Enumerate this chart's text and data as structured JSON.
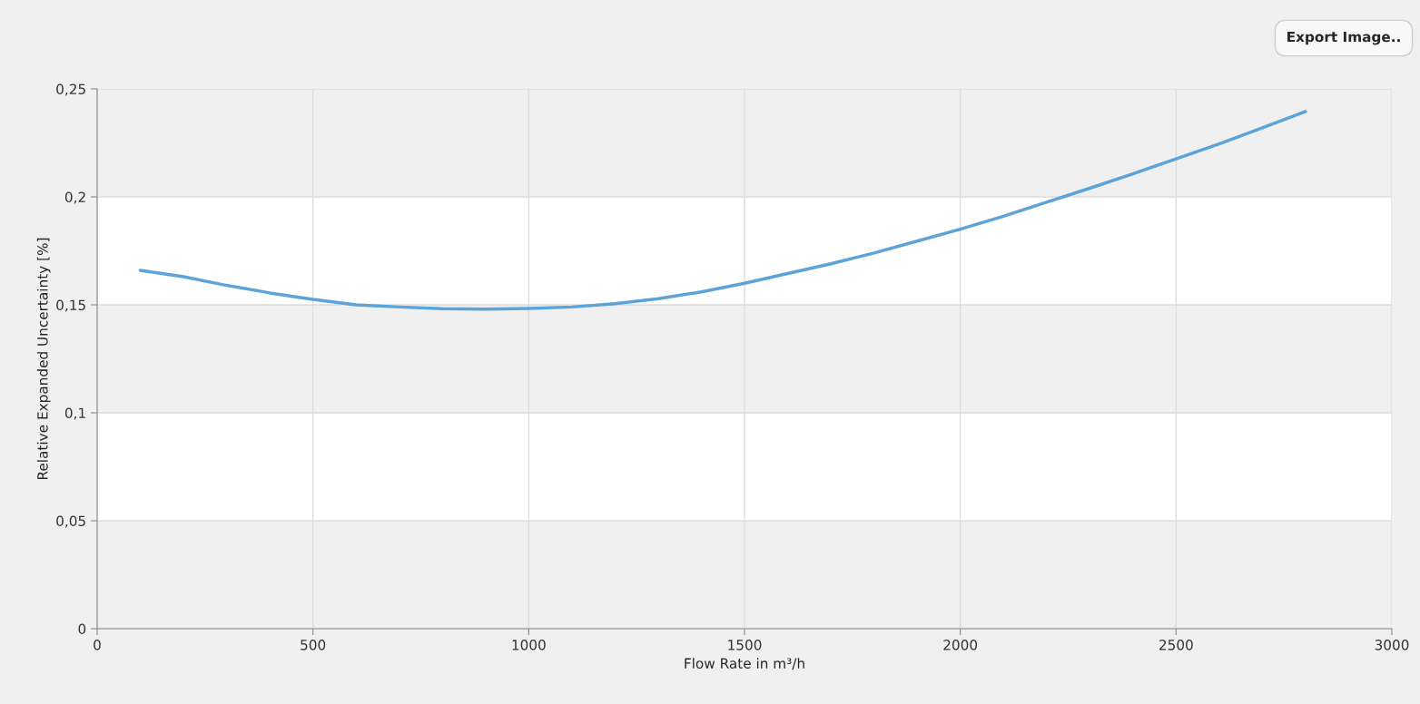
{
  "chart_data": {
    "type": "line",
    "xlabel": "Flow Rate in m³/h",
    "ylabel": "Relative Expanded Uncertainty [%]",
    "annotations": [
      "Export Image.."
    ],
    "x": [
      100,
      200,
      300,
      400,
      500,
      600,
      700,
      800,
      900,
      1000,
      1100,
      1200,
      1300,
      1400,
      1500,
      1600,
      1700,
      1800,
      1900,
      2000,
      2100,
      2200,
      2300,
      2400,
      2500,
      2600,
      2700,
      2800
    ],
    "series": [
      {
        "color": "#5ba3d9",
        "values": [
          0.166,
          0.163,
          0.159,
          0.1555,
          0.1525,
          0.15,
          0.149,
          0.1482,
          0.148,
          0.1483,
          0.149,
          0.1505,
          0.1528,
          0.156,
          0.16,
          0.1645,
          0.169,
          0.174,
          0.1795,
          0.185,
          0.191,
          0.1975,
          0.204,
          0.2107,
          0.2176,
          0.2245,
          0.232,
          0.2395
        ]
      }
    ],
    "xlim": [
      0,
      3000
    ],
    "xticks": [
      0,
      500,
      1000,
      1500,
      2000,
      2500,
      3000
    ],
    "ylim": [
      0,
      0.25
    ],
    "yticks": [
      {
        "value": 0,
        "label": "0"
      },
      {
        "value": 0.05,
        "label": "0,05"
      },
      {
        "value": 0.1,
        "label": "0,1"
      },
      {
        "value": 0.15,
        "label": "0,15"
      },
      {
        "value": 0.2,
        "label": "0,2"
      },
      {
        "value": 0.25,
        "label": "0,25"
      }
    ],
    "bands": [
      {
        "axis": "y",
        "from": 0,
        "to": 0.05,
        "color": "#f0f0f0"
      },
      {
        "axis": "y",
        "from": 0.1,
        "to": 0.15,
        "color": "#f0f0f0"
      },
      {
        "axis": "y",
        "from": 0.2,
        "to": 0.25,
        "color": "#f0f0f0"
      }
    ],
    "grid": true,
    "legend": false,
    "marker": "none",
    "line_style": "solid"
  }
}
